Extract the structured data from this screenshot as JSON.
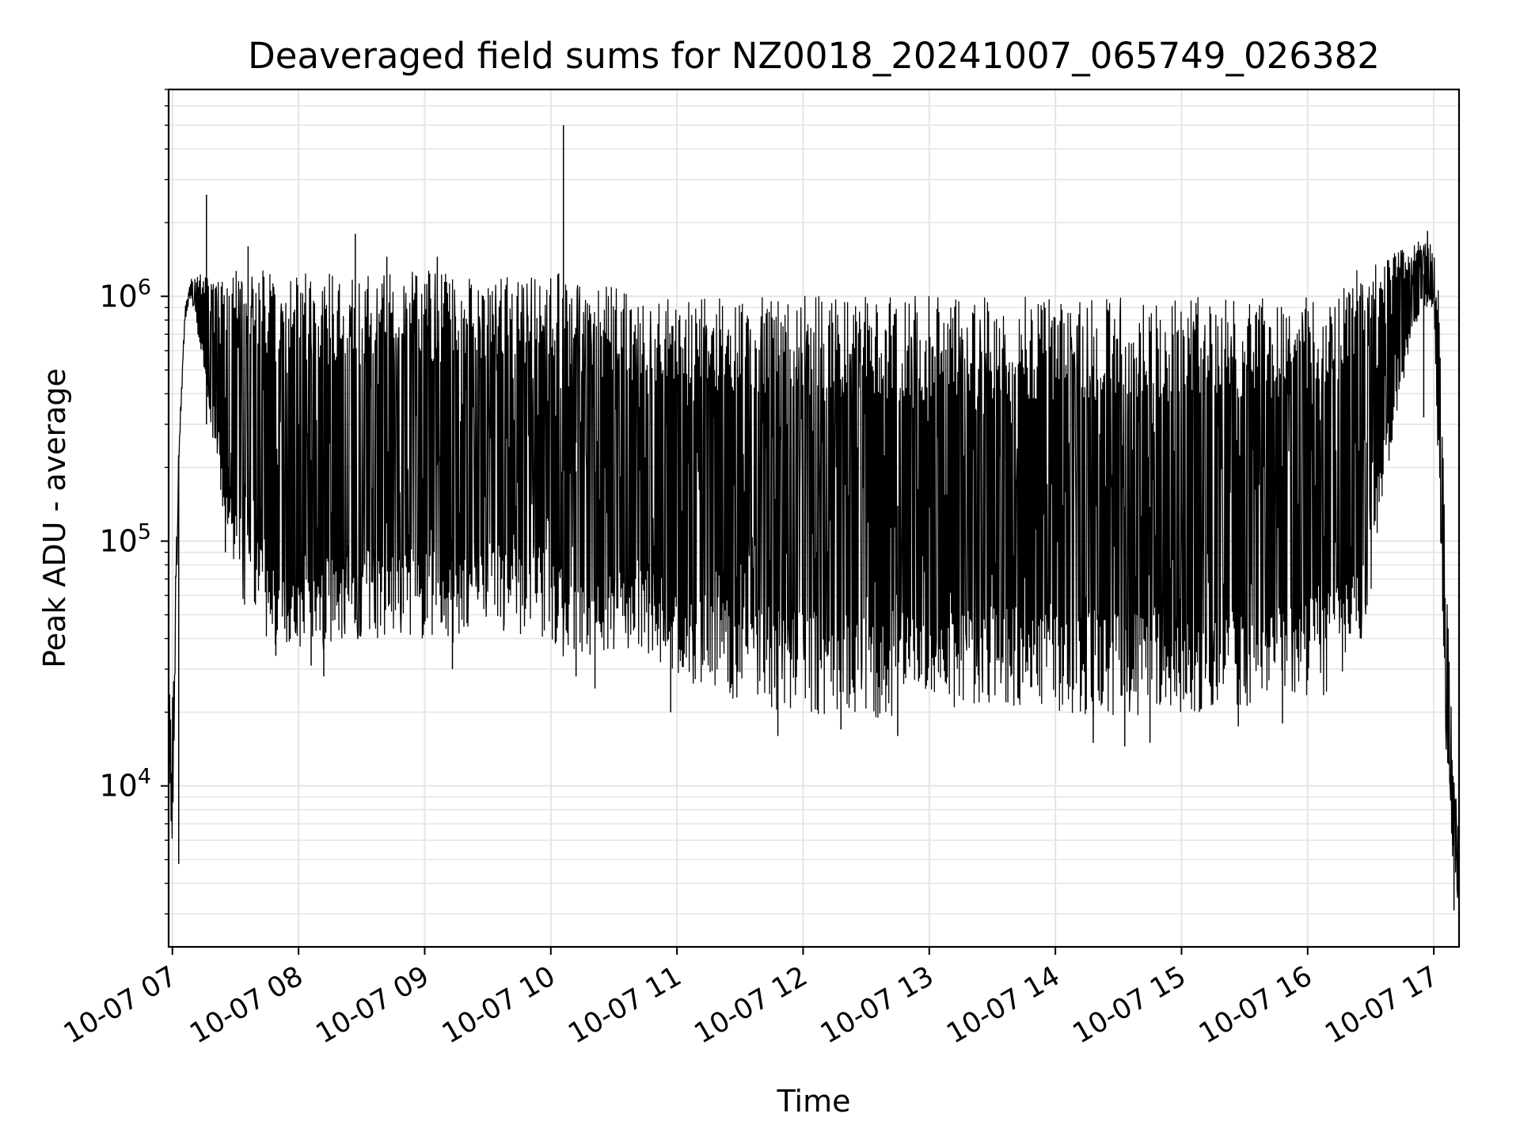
{
  "chart_data": {
    "type": "line",
    "title": "Deaveraged field sums for NZ0018_20241007_065749_026382",
    "xlabel": "Time",
    "ylabel": "Peak ADU - average",
    "yscale": "log",
    "ylim": [
      2200,
      7000000
    ],
    "xlim_hours": [
      6.97,
      17.2
    ],
    "grid": true,
    "x_ticks": [
      {
        "hour": 7,
        "label": "10-07 07"
      },
      {
        "hour": 8,
        "label": "10-07 08"
      },
      {
        "hour": 9,
        "label": "10-07 09"
      },
      {
        "hour": 10,
        "label": "10-07 10"
      },
      {
        "hour": 11,
        "label": "10-07 11"
      },
      {
        "hour": 12,
        "label": "10-07 12"
      },
      {
        "hour": 13,
        "label": "10-07 13"
      },
      {
        "hour": 14,
        "label": "10-07 14"
      },
      {
        "hour": 15,
        "label": "10-07 15"
      },
      {
        "hour": 16,
        "label": "10-07 16"
      },
      {
        "hour": 17,
        "label": "10-07 17"
      }
    ],
    "y_ticks": [
      {
        "value": 10000,
        "base": "10",
        "exp": "4"
      },
      {
        "value": 100000,
        "base": "10",
        "exp": "5"
      },
      {
        "value": 1000000,
        "base": "10",
        "exp": "6"
      }
    ],
    "series": [
      {
        "color": "#000000",
        "envelope": {
          "hour": [
            6.97,
            7.0,
            7.05,
            7.1,
            7.15,
            7.2,
            7.3,
            7.4,
            7.5,
            7.6,
            7.7,
            7.8,
            7.9,
            8.0,
            8.2,
            8.4,
            8.6,
            8.8,
            9.0,
            9.1,
            9.3,
            9.5,
            9.8,
            10.0,
            10.1,
            10.3,
            10.5,
            10.8,
            11.0,
            11.3,
            11.6,
            12.0,
            12.3,
            12.6,
            13.0,
            13.3,
            13.6,
            14.0,
            14.3,
            14.6,
            15.0,
            15.3,
            15.6,
            15.9,
            16.1,
            16.3,
            16.4,
            16.5,
            16.6,
            16.7,
            16.8,
            16.9,
            17.0,
            17.05,
            17.1,
            17.15,
            17.2
          ],
          "upper": [
            25000,
            22000,
            250000,
            900000,
            1200000,
            1250000,
            1200000,
            1300000,
            1300000,
            1300000,
            1300000,
            1250000,
            1250000,
            1280000,
            1280000,
            1250000,
            1200000,
            1250000,
            1300000,
            1300000,
            1300000,
            1280000,
            1250000,
            1280000,
            1250000,
            1150000,
            1100000,
            1050000,
            1000000,
            1000000,
            1000000,
            1000000,
            1000000,
            1000000,
            1000000,
            1000000,
            1000000,
            1000000,
            1000000,
            1000000,
            1000000,
            1000000,
            1000000,
            1000000,
            1050000,
            1100000,
            1300000,
            1400000,
            1500000,
            1550000,
            1600000,
            1700000,
            1600000,
            1000000,
            80000,
            14000,
            6000
          ],
          "lower": [
            12000,
            5000,
            200000,
            800000,
            1000000,
            700000,
            300000,
            130000,
            70000,
            50000,
            40000,
            38000,
            37000,
            36000,
            36000,
            38000,
            40000,
            42000,
            40000,
            35000,
            40000,
            42000,
            40000,
            40000,
            30000,
            32000,
            34000,
            33000,
            28000,
            24000,
            21000,
            20000,
            19000,
            19000,
            20000,
            21000,
            21000,
            20000,
            19000,
            19000,
            19000,
            20000,
            21000,
            22000,
            23000,
            27000,
            35000,
            60000,
            150000,
            300000,
            600000,
            900000,
            900000,
            100000,
            12000,
            5000,
            3000
          ]
        },
        "spikes": [
          {
            "hour": 7.27,
            "value": 2600000
          },
          {
            "hour": 7.27,
            "value": 300000
          },
          {
            "hour": 7.4,
            "value": 150000
          },
          {
            "hour": 7.42,
            "value": 90000
          },
          {
            "hour": 7.6,
            "value": 1600000
          },
          {
            "hour": 7.82,
            "value": 34000
          },
          {
            "hour": 8.1,
            "value": 31000
          },
          {
            "hour": 8.2,
            "value": 28000
          },
          {
            "hour": 8.45,
            "value": 1800000
          },
          {
            "hour": 8.7,
            "value": 1450000
          },
          {
            "hour": 9.1,
            "value": 1450000
          },
          {
            "hour": 9.22,
            "value": 30000
          },
          {
            "hour": 10.1,
            "value": 5000000
          },
          {
            "hour": 10.2,
            "value": 28000
          },
          {
            "hour": 10.35,
            "value": 25000
          },
          {
            "hour": 10.95,
            "value": 20000
          },
          {
            "hour": 11.8,
            "value": 16000
          },
          {
            "hour": 12.3,
            "value": 17000
          },
          {
            "hour": 12.75,
            "value": 16000
          },
          {
            "hour": 14.3,
            "value": 15000
          },
          {
            "hour": 14.55,
            "value": 14500
          },
          {
            "hour": 14.75,
            "value": 15000
          },
          {
            "hour": 15.45,
            "value": 17500
          },
          {
            "hour": 15.8,
            "value": 18000
          },
          {
            "hour": 16.95,
            "value": 1850000
          },
          {
            "hour": 16.92,
            "value": 320000
          },
          {
            "hour": 7.05,
            "value": 4800
          },
          {
            "hour": 17.16,
            "value": 3100
          },
          {
            "hour": 17.18,
            "value": 5000
          }
        ]
      }
    ]
  }
}
